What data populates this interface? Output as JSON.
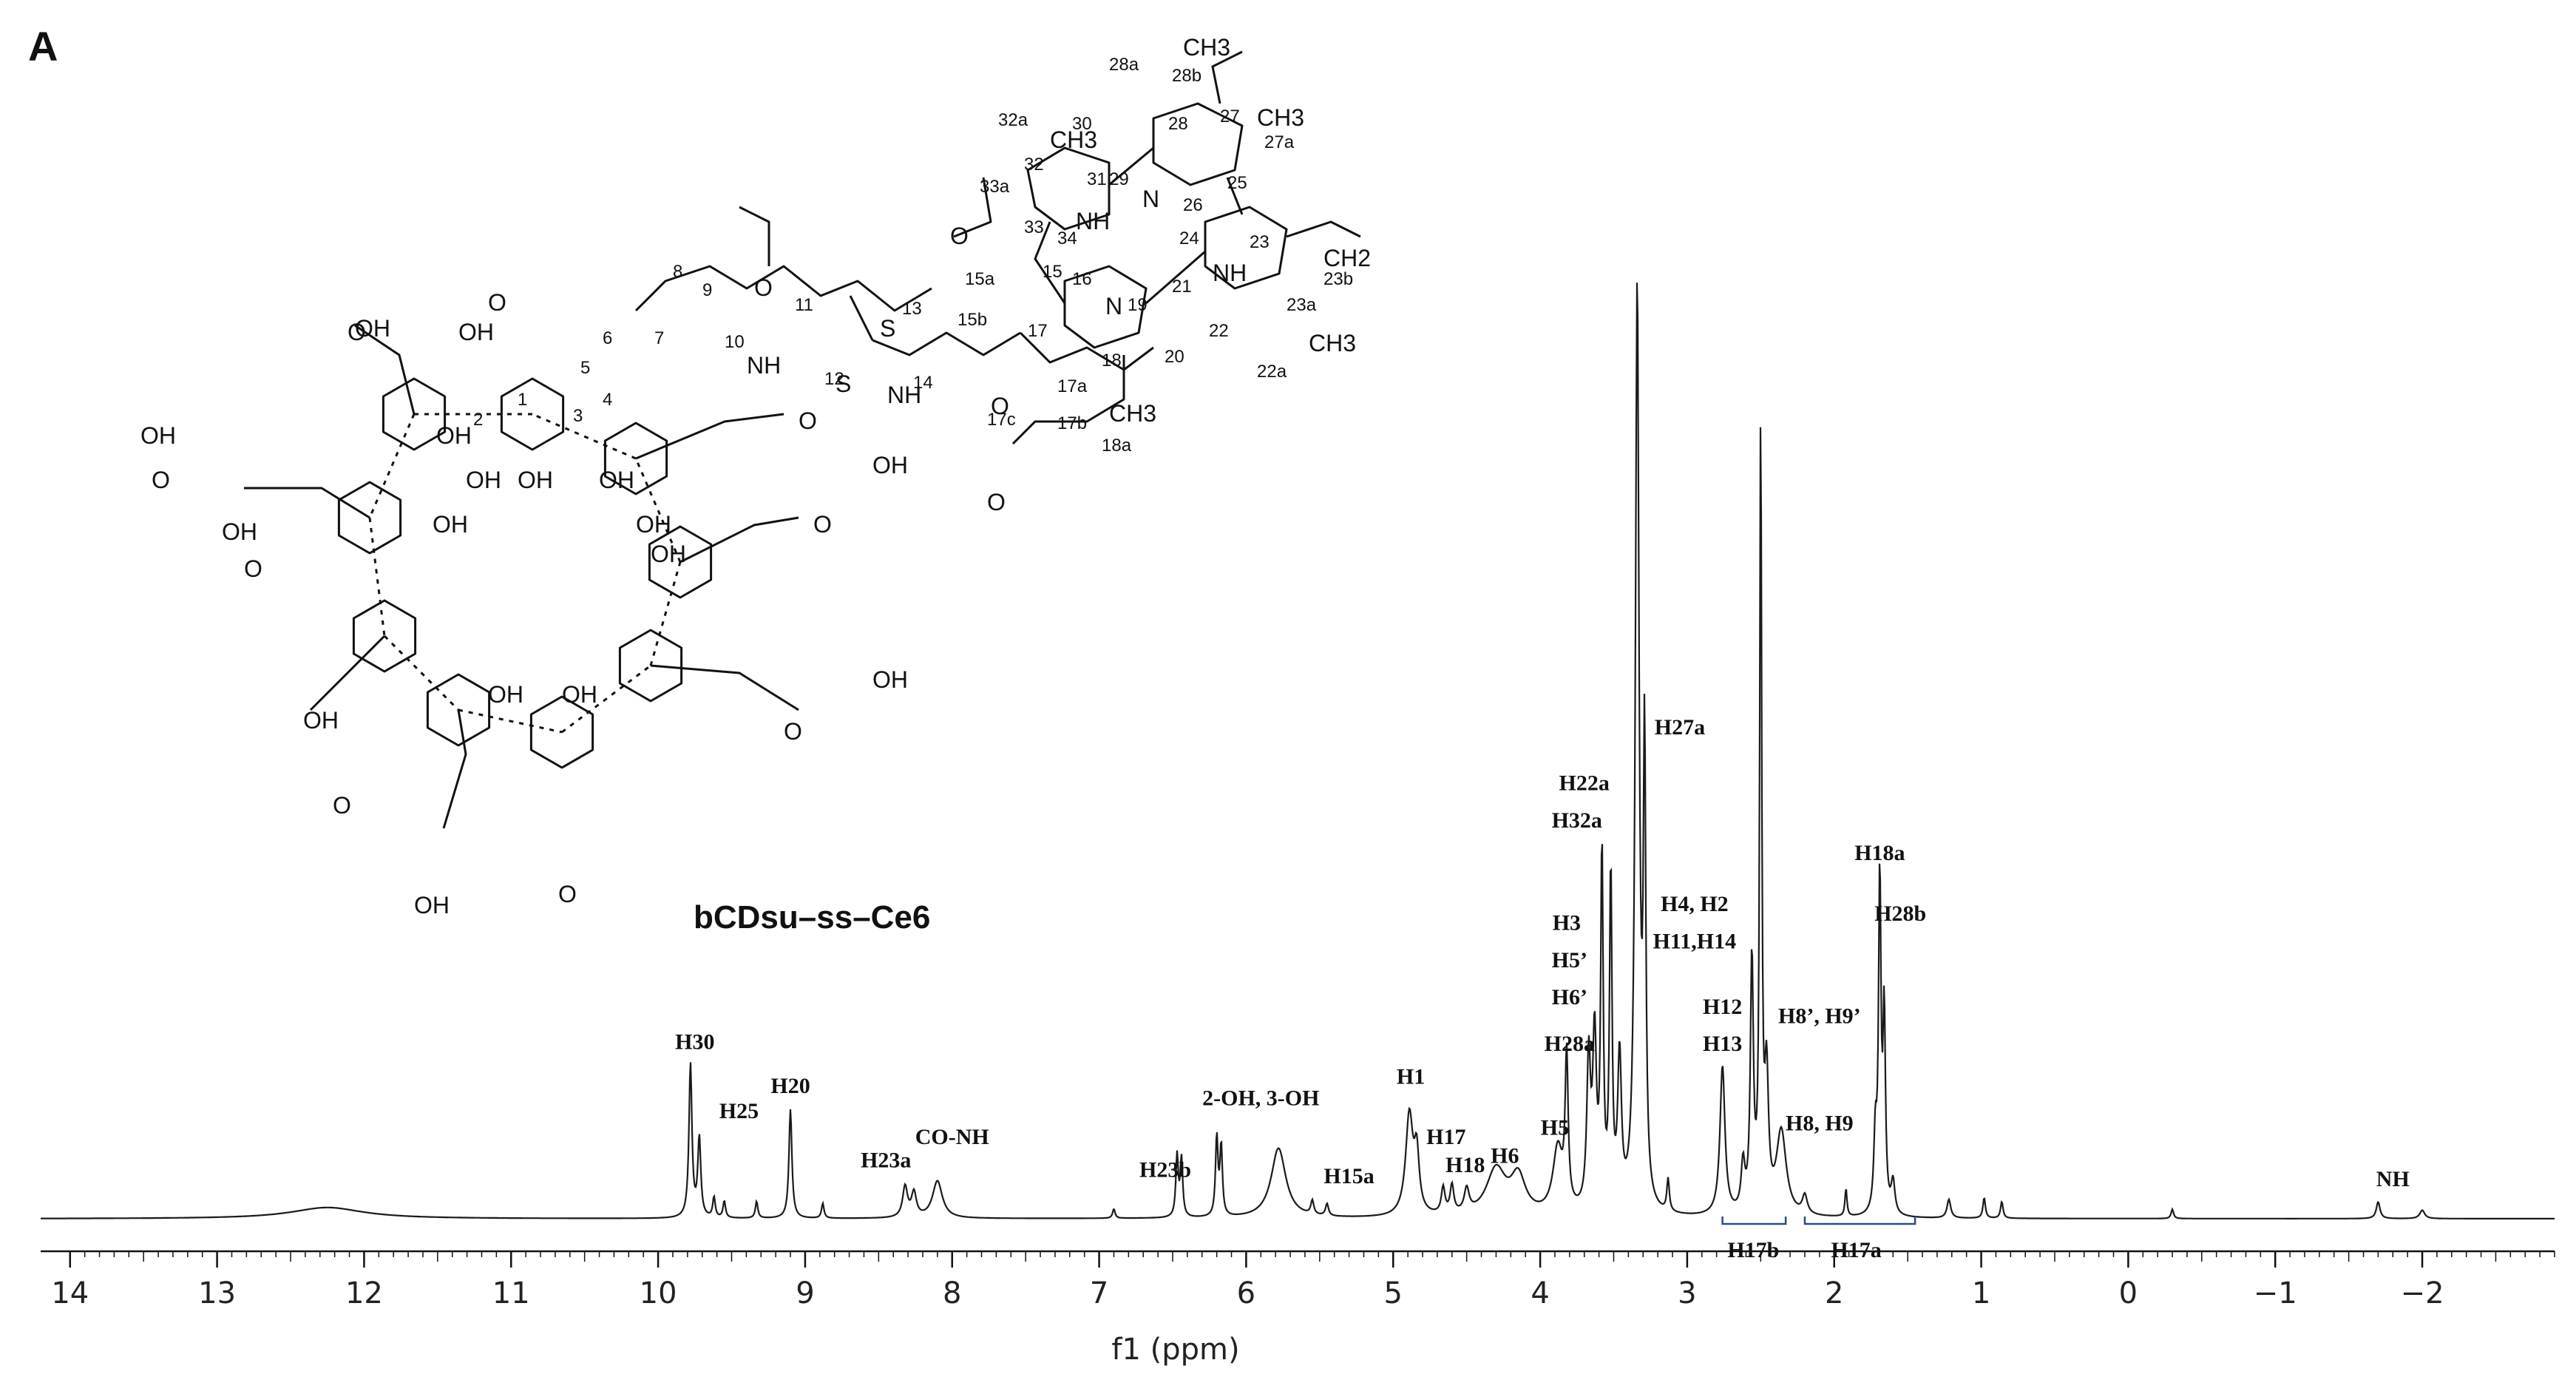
{
  "panel_label": "A",
  "structure": {
    "name": "bCDsu–ss–Ce6",
    "numbers": [
      "1",
      "2",
      "3",
      "4",
      "5",
      "6",
      "7",
      "8",
      "9",
      "10",
      "11",
      "12",
      "13",
      "14",
      "15",
      "15a",
      "15b",
      "16",
      "17",
      "17a",
      "17b",
      "17c",
      "18",
      "18a",
      "19",
      "20",
      "21",
      "22",
      "22a",
      "23",
      "23a",
      "23b",
      "24",
      "25",
      "26",
      "27",
      "27a",
      "28",
      "28a",
      "28b",
      "29",
      "30",
      "31",
      "32",
      "32a",
      "33",
      "33a",
      "34"
    ],
    "atom_labels": [
      "OH",
      "O",
      "NH",
      "N",
      "S",
      "CH3",
      "CH2"
    ]
  },
  "chart_data": {
    "type": "line",
    "title": "",
    "xlabel": "f1 (ppm)",
    "ylabel": "",
    "xlim": [
      14.2,
      -2.9
    ],
    "x_reversed": true,
    "ticks": [
      14,
      13,
      12,
      11,
      10,
      9,
      8,
      7,
      6,
      5,
      4,
      3,
      2,
      1,
      0,
      -1,
      -2
    ],
    "tick_labels": [
      "14",
      "13",
      "12",
      "11",
      "10",
      "9",
      "8",
      "7",
      "6",
      "5",
      "4",
      "3",
      "2",
      "1",
      "0",
      "−1",
      "−2"
    ],
    "series": [
      {
        "peaks": [
          {
            "x": 12.25,
            "h": 0.012,
            "w": 0.3
          },
          {
            "x": 9.78,
            "h": 0.165,
            "w": 0.012
          },
          {
            "x": 9.72,
            "h": 0.085,
            "w": 0.012
          },
          {
            "x": 9.62,
            "h": 0.022,
            "w": 0.01
          },
          {
            "x": 9.55,
            "h": 0.018,
            "w": 0.01
          },
          {
            "x": 9.33,
            "h": 0.018,
            "w": 0.01
          },
          {
            "x": 9.1,
            "h": 0.117,
            "w": 0.012
          },
          {
            "x": 8.88,
            "h": 0.016,
            "w": 0.01
          },
          {
            "x": 8.32,
            "h": 0.033,
            "w": 0.02
          },
          {
            "x": 8.26,
            "h": 0.026,
            "w": 0.02
          },
          {
            "x": 8.1,
            "h": 0.04,
            "w": 0.04
          },
          {
            "x": 6.9,
            "h": 0.01,
            "w": 0.01
          },
          {
            "x": 6.47,
            "h": 0.066,
            "w": 0.01
          },
          {
            "x": 6.44,
            "h": 0.062,
            "w": 0.01
          },
          {
            "x": 6.2,
            "h": 0.085,
            "w": 0.01
          },
          {
            "x": 6.17,
            "h": 0.075,
            "w": 0.01
          },
          {
            "x": 5.78,
            "h": 0.075,
            "w": 0.06
          },
          {
            "x": 5.55,
            "h": 0.015,
            "w": 0.012
          },
          {
            "x": 5.45,
            "h": 0.013,
            "w": 0.012
          },
          {
            "x": 4.89,
            "h": 0.108,
            "w": 0.03
          },
          {
            "x": 4.84,
            "h": 0.06,
            "w": 0.02
          },
          {
            "x": 4.66,
            "h": 0.028,
            "w": 0.015
          },
          {
            "x": 4.6,
            "h": 0.03,
            "w": 0.015
          },
          {
            "x": 4.5,
            "h": 0.025,
            "w": 0.02
          },
          {
            "x": 4.3,
            "h": 0.05,
            "w": 0.08
          },
          {
            "x": 4.15,
            "h": 0.04,
            "w": 0.06
          },
          {
            "x": 3.88,
            "h": 0.07,
            "w": 0.04
          },
          {
            "x": 3.82,
            "h": 0.16,
            "w": 0.012
          },
          {
            "x": 3.67,
            "h": 0.16,
            "w": 0.015
          },
          {
            "x": 3.63,
            "h": 0.18,
            "w": 0.015
          },
          {
            "x": 3.58,
            "h": 0.38,
            "w": 0.01
          },
          {
            "x": 3.52,
            "h": 0.36,
            "w": 0.01
          },
          {
            "x": 3.46,
            "h": 0.16,
            "w": 0.015
          },
          {
            "x": 3.34,
            "h": 0.99,
            "w": 0.015
          },
          {
            "x": 3.29,
            "h": 0.48,
            "w": 0.01
          },
          {
            "x": 3.13,
            "h": 0.035,
            "w": 0.01
          },
          {
            "x": 2.76,
            "h": 0.16,
            "w": 0.02
          },
          {
            "x": 2.62,
            "h": 0.05,
            "w": 0.015
          },
          {
            "x": 2.56,
            "h": 0.27,
            "w": 0.012
          },
          {
            "x": 2.5,
            "h": 0.845,
            "w": 0.008
          },
          {
            "x": 2.46,
            "h": 0.14,
            "w": 0.015
          },
          {
            "x": 2.36,
            "h": 0.09,
            "w": 0.04
          },
          {
            "x": 2.2,
            "h": 0.02,
            "w": 0.02
          },
          {
            "x": 1.92,
            "h": 0.03,
            "w": 0.008
          },
          {
            "x": 1.72,
            "h": 0.08,
            "w": 0.012
          },
          {
            "x": 1.69,
            "h": 0.36,
            "w": 0.01
          },
          {
            "x": 1.66,
            "h": 0.21,
            "w": 0.01
          },
          {
            "x": 1.6,
            "h": 0.035,
            "w": 0.015
          },
          {
            "x": 1.22,
            "h": 0.02,
            "w": 0.015
          },
          {
            "x": 0.98,
            "h": 0.022,
            "w": 0.01
          },
          {
            "x": 0.86,
            "h": 0.018,
            "w": 0.01
          },
          {
            "x": -0.3,
            "h": 0.01,
            "w": 0.01
          },
          {
            "x": -1.7,
            "h": 0.018,
            "w": 0.015
          },
          {
            "x": -2.0,
            "h": 0.009,
            "w": 0.02
          }
        ]
      }
    ],
    "annotations": [
      {
        "text": "H30",
        "x": 9.75,
        "y": 0.182
      },
      {
        "text": "H25",
        "x": 9.45,
        "y": 0.108
      },
      {
        "text": "H20",
        "x": 9.1,
        "y": 0.135
      },
      {
        "text": "H23a",
        "x": 8.45,
        "y": 0.055
      },
      {
        "text": "CO-NH",
        "x": 8.0,
        "y": 0.08
      },
      {
        "text": "H23b",
        "x": 6.55,
        "y": 0.045
      },
      {
        "text": "2-OH, 3-OH",
        "x": 5.9,
        "y": 0.122
      },
      {
        "text": "H15a",
        "x": 5.3,
        "y": 0.038
      },
      {
        "text": "H1",
        "x": 4.88,
        "y": 0.145
      },
      {
        "text": "H17",
        "x": 4.64,
        "y": 0.08
      },
      {
        "text": "H18",
        "x": 4.51,
        "y": 0.05
      },
      {
        "text": "H6",
        "x": 4.24,
        "y": 0.06
      },
      {
        "text": "H5",
        "x": 3.9,
        "y": 0.09
      },
      {
        "text": "H28a",
        "x": 3.8,
        "y": 0.18
      },
      {
        "text": "H6’",
        "x": 3.8,
        "y": 0.23
      },
      {
        "text": "H5’",
        "x": 3.8,
        "y": 0.27
      },
      {
        "text": "H3",
        "x": 3.82,
        "y": 0.31
      },
      {
        "text": "H32a",
        "x": 3.75,
        "y": 0.42
      },
      {
        "text": "H22a",
        "x": 3.7,
        "y": 0.46
      },
      {
        "text": "H27a",
        "x": 3.05,
        "y": 0.52
      },
      {
        "text": "H4, H2",
        "x": 2.95,
        "y": 0.33
      },
      {
        "text": "H11,H14",
        "x": 2.95,
        "y": 0.29
      },
      {
        "text": "H12",
        "x": 2.76,
        "y": 0.22
      },
      {
        "text": "H13",
        "x": 2.76,
        "y": 0.18
      },
      {
        "text": "H8’, H9’",
        "x": 2.1,
        "y": 0.21
      },
      {
        "text": "H8, H9",
        "x": 2.1,
        "y": 0.095
      },
      {
        "text": "H18a",
        "x": 1.69,
        "y": 0.385
      },
      {
        "text": "H28b",
        "x": 1.55,
        "y": 0.32
      },
      {
        "text": "H17b",
        "x": 2.55,
        "y": -0.016
      },
      {
        "text": "H17a",
        "x": 1.85,
        "y": -0.016
      },
      {
        "text": "NH",
        "x": -1.8,
        "y": 0.035
      }
    ],
    "integration_brackets": [
      {
        "label": "H17b",
        "from": 2.76,
        "to": 2.33
      },
      {
        "label": "H17a",
        "from": 2.2,
        "to": 1.45
      }
    ]
  }
}
